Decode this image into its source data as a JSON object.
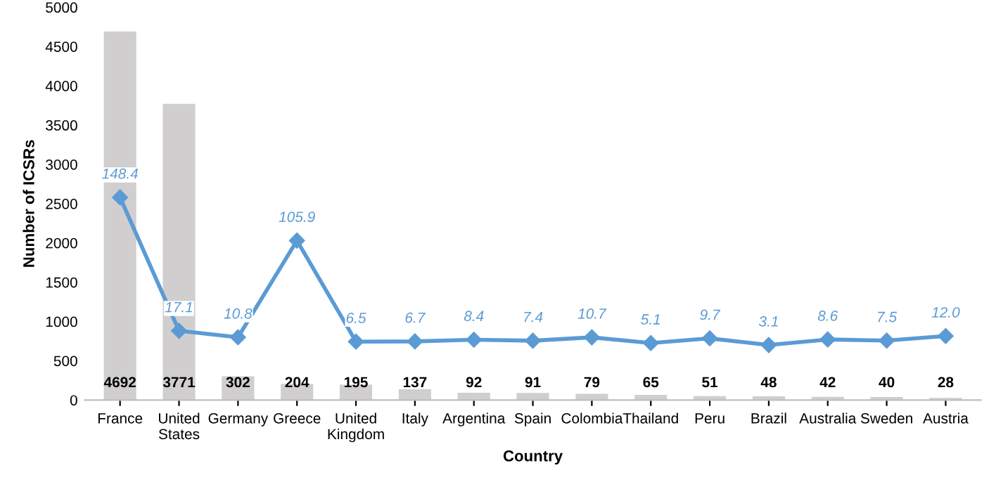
{
  "chart_data": {
    "type": "bar",
    "xlabel": "Country",
    "ylabel": "Number of ICSRs",
    "categories": [
      "France",
      "United\nStates",
      "Germany",
      "Greece",
      "United\nKingdom",
      "Italy",
      "Argentina",
      "Spain",
      "Colombia",
      "Thailand",
      "Peru",
      "Brazil",
      "Australia",
      "Sweden",
      "Austria"
    ],
    "series": [
      {
        "color": "#d0cece",
        "values": [
          4692,
          3771,
          302,
          204,
          195,
          137,
          92,
          91,
          79,
          65,
          51,
          48,
          42,
          40,
          28
        ]
      },
      {
        "type": "line",
        "axis": "y2",
        "color": "#5b9bd5",
        "marker": "diamond",
        "values": [
          148.4,
          17.1,
          10.8,
          105.9,
          6.5,
          6.7,
          8.4,
          7.4,
          10.7,
          5.1,
          9.7,
          3.1,
          8.6,
          7.5,
          12.0
        ],
        "value_labels": [
          "148.4",
          "17.1",
          "10.8",
          "105.9",
          "6.5",
          "6.7",
          "8.4",
          "7.4",
          "10.7",
          "5.1",
          "9.7",
          "3.1",
          "8.6",
          "7.5",
          "12.0"
        ]
      }
    ],
    "ylim": [
      0,
      5000
    ],
    "yticks": [
      0,
      500,
      1000,
      1500,
      2000,
      2500,
      3000,
      3500,
      4000,
      4500,
      5000
    ],
    "data_labels": true,
    "grid": false,
    "legend": false
  }
}
